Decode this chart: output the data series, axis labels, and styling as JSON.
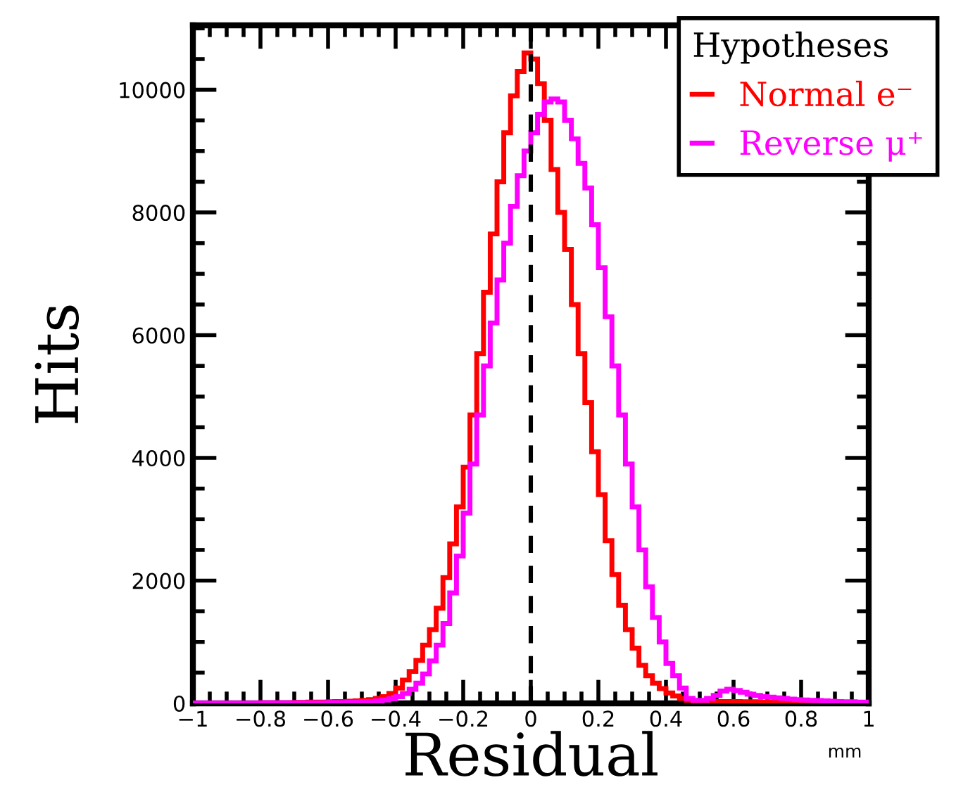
{
  "chart_data": {
    "type": "histogram",
    "xlabel": "Residual",
    "ylabel": "Hits",
    "legend_title": "Hypotheses",
    "legend": "top right",
    "annotations": [
      "mm"
    ],
    "bins": [
      -1,
      -0.98,
      -0.96,
      -0.94,
      -0.92,
      -0.9,
      -0.88,
      -0.86,
      -0.84,
      -0.82,
      -0.8,
      -0.78,
      -0.76,
      -0.74,
      -0.72,
      -0.7,
      -0.68,
      -0.66,
      -0.64,
      -0.62,
      -0.6,
      -0.58,
      -0.56,
      -0.54,
      -0.52,
      -0.5,
      -0.48,
      -0.46,
      -0.44,
      -0.42,
      -0.4,
      -0.38,
      -0.36,
      -0.34,
      -0.32,
      -0.3,
      -0.28,
      -0.26,
      -0.24,
      -0.22,
      -0.2,
      -0.18,
      -0.16,
      -0.14,
      -0.12,
      -0.1,
      -0.08,
      -0.06,
      -0.04,
      -0.02,
      0,
      0.02,
      0.04,
      0.06,
      0.08,
      0.1,
      0.12,
      0.14,
      0.16,
      0.18,
      0.2,
      0.22,
      0.24,
      0.26,
      0.28,
      0.3,
      0.32,
      0.34,
      0.36,
      0.38,
      0.4,
      0.42,
      0.44,
      0.46,
      0.48,
      0.5,
      0.52,
      0.54,
      0.56,
      0.58,
      0.6,
      0.62,
      0.64,
      0.66,
      0.68,
      0.7,
      0.72,
      0.74,
      0.76,
      0.78,
      0.8,
      0.82,
      0.84,
      0.86,
      0.88,
      0.9,
      0.92,
      0.94,
      0.96,
      0.98,
      1
    ],
    "series": [
      {
        "name": "Normal e⁻",
        "color": "#ff0000",
        "values": [
          5,
          5,
          5,
          5,
          5,
          5,
          5,
          5,
          5,
          5,
          10,
          10,
          10,
          10,
          10,
          15,
          15,
          20,
          20,
          20,
          25,
          30,
          30,
          35,
          40,
          50,
          60,
          80,
          110,
          160,
          250,
          380,
          520,
          700,
          950,
          1200,
          1550,
          2050,
          2600,
          3200,
          3850,
          4700,
          5700,
          6700,
          7650,
          8500,
          9300,
          9900,
          10300,
          10600,
          10500,
          10100,
          9500,
          8700,
          8000,
          7400,
          6500,
          5700,
          4900,
          4100,
          3400,
          2650,
          2100,
          1600,
          1200,
          900,
          620,
          450,
          330,
          240,
          170,
          120,
          80,
          50,
          40,
          30,
          30,
          30,
          30,
          30,
          30,
          25,
          25,
          25,
          20,
          20,
          20,
          15,
          15,
          15,
          10,
          10,
          10,
          10,
          10,
          5,
          5,
          5,
          5,
          5
        ]
      },
      {
        "name": "Reverse μ⁺",
        "color": "#ff00ff",
        "values": [
          5,
          5,
          5,
          5,
          5,
          5,
          5,
          5,
          5,
          5,
          10,
          10,
          10,
          10,
          10,
          10,
          10,
          10,
          10,
          10,
          15,
          15,
          15,
          20,
          20,
          25,
          30,
          40,
          55,
          75,
          110,
          160,
          230,
          330,
          480,
          690,
          950,
          1300,
          1800,
          2400,
          3100,
          3900,
          4700,
          5500,
          6200,
          6900,
          7500,
          8100,
          8600,
          9000,
          9300,
          9600,
          9800,
          9850,
          9800,
          9500,
          9200,
          8800,
          8400,
          7800,
          7100,
          6300,
          5500,
          4700,
          3900,
          3200,
          2500,
          1900,
          1400,
          1000,
          650,
          450,
          250,
          80,
          50,
          50,
          80,
          130,
          200,
          230,
          210,
          180,
          150,
          130,
          110,
          100,
          90,
          80,
          70,
          60,
          55,
          50,
          45,
          40,
          35,
          30,
          25,
          25,
          20,
          20
        ]
      }
    ],
    "ref_lines": [
      {
        "axis": "x",
        "value": 0,
        "color": "#000000",
        "line_style": "dashed"
      }
    ],
    "xlim": [
      -1,
      1
    ],
    "xticks": [
      {
        "value": -1,
        "label": "−1"
      },
      {
        "value": -0.8,
        "label": "−0.8"
      },
      {
        "value": -0.6,
        "label": "−0.6"
      },
      {
        "value": -0.4,
        "label": "−0.4"
      },
      {
        "value": -0.2,
        "label": "−0.2"
      },
      0,
      0.2,
      0.4,
      0.6,
      0.8,
      1
    ],
    "ylim": [
      0,
      11050
    ],
    "yticks": [
      0,
      2000,
      4000,
      6000,
      8000,
      10000
    ],
    "grid": false
  }
}
